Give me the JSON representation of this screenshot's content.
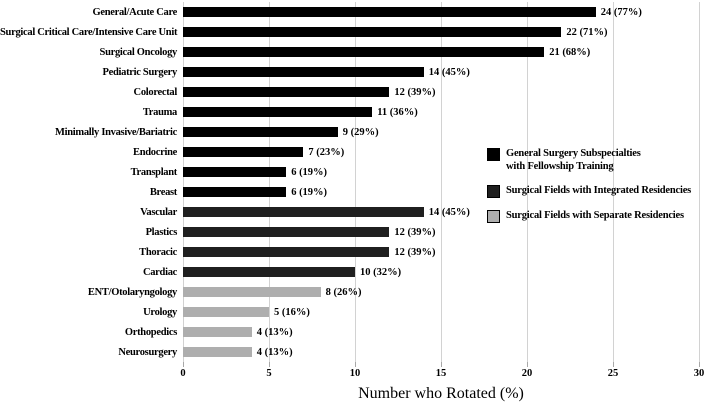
{
  "chart_data": {
    "type": "bar",
    "orientation": "horizontal",
    "title": "",
    "xlabel": "Number who Rotated (%)",
    "ylabel": "",
    "xlim": [
      0,
      30
    ],
    "xticks": [
      0,
      5,
      10,
      15,
      20,
      25,
      30
    ],
    "grid": "vertical",
    "legend_position": "right",
    "categories": [
      "General/Acute Care",
      "Surgical Critical Care/Intensive Care Unit",
      "Surgical Oncology",
      "Pediatric Surgery",
      "Colorectal",
      "Trauma",
      "Minimally Invasive/Bariatric",
      "Endocrine",
      "Transplant",
      "Breast",
      "Vascular",
      "Plastics",
      "Thoracic",
      "Cardiac",
      "ENT/Otolaryngology",
      "Urology",
      "Orthopedics",
      "Neurosurgery"
    ],
    "values": [
      24,
      22,
      21,
      14,
      12,
      11,
      9,
      7,
      6,
      6,
      14,
      12,
      12,
      10,
      8,
      5,
      4,
      4
    ],
    "value_labels": [
      "24 (77%)",
      "22 (71%)",
      "21 (68%)",
      "14 (45%)",
      "12 (39%)",
      "11 (36%)",
      "9 (29%)",
      "7 (23%)",
      "6 (19%)",
      "6 (19%)",
      "14 (45%)",
      "12 (39%)",
      "12 (39%)",
      "10 (32%)",
      "8 (26%)",
      "5 (16%)",
      "4 (13%)",
      "4 (13%)"
    ],
    "group_index": [
      0,
      0,
      0,
      0,
      0,
      0,
      0,
      0,
      0,
      0,
      1,
      1,
      1,
      1,
      2,
      2,
      2,
      2
    ],
    "groups": [
      {
        "name": "General Surgery Subspecialties with Fellowship Training",
        "color": "#000000"
      },
      {
        "name": "Surgical Fields with Integrated Residencies",
        "color": "#1f1f1f"
      },
      {
        "name": "Surgical Fields with Separate Residencies",
        "color": "#aeaeae"
      }
    ],
    "legend_entries": [
      {
        "lines": [
          "General Surgery Subspecialties",
          "with Fellowship Training"
        ],
        "color": "#000000"
      },
      {
        "lines": [
          "Surgical Fields with Integrated Residencies"
        ],
        "color": "#1f1f1f"
      },
      {
        "lines": [
          "Surgical Fields with Separate Residencies"
        ],
        "color": "#aeaeae"
      }
    ],
    "colors": {
      "gridline": "#d2d2d2",
      "tick": "#a8a8a8",
      "text": "#000000",
      "background": "#ffffff"
    }
  }
}
